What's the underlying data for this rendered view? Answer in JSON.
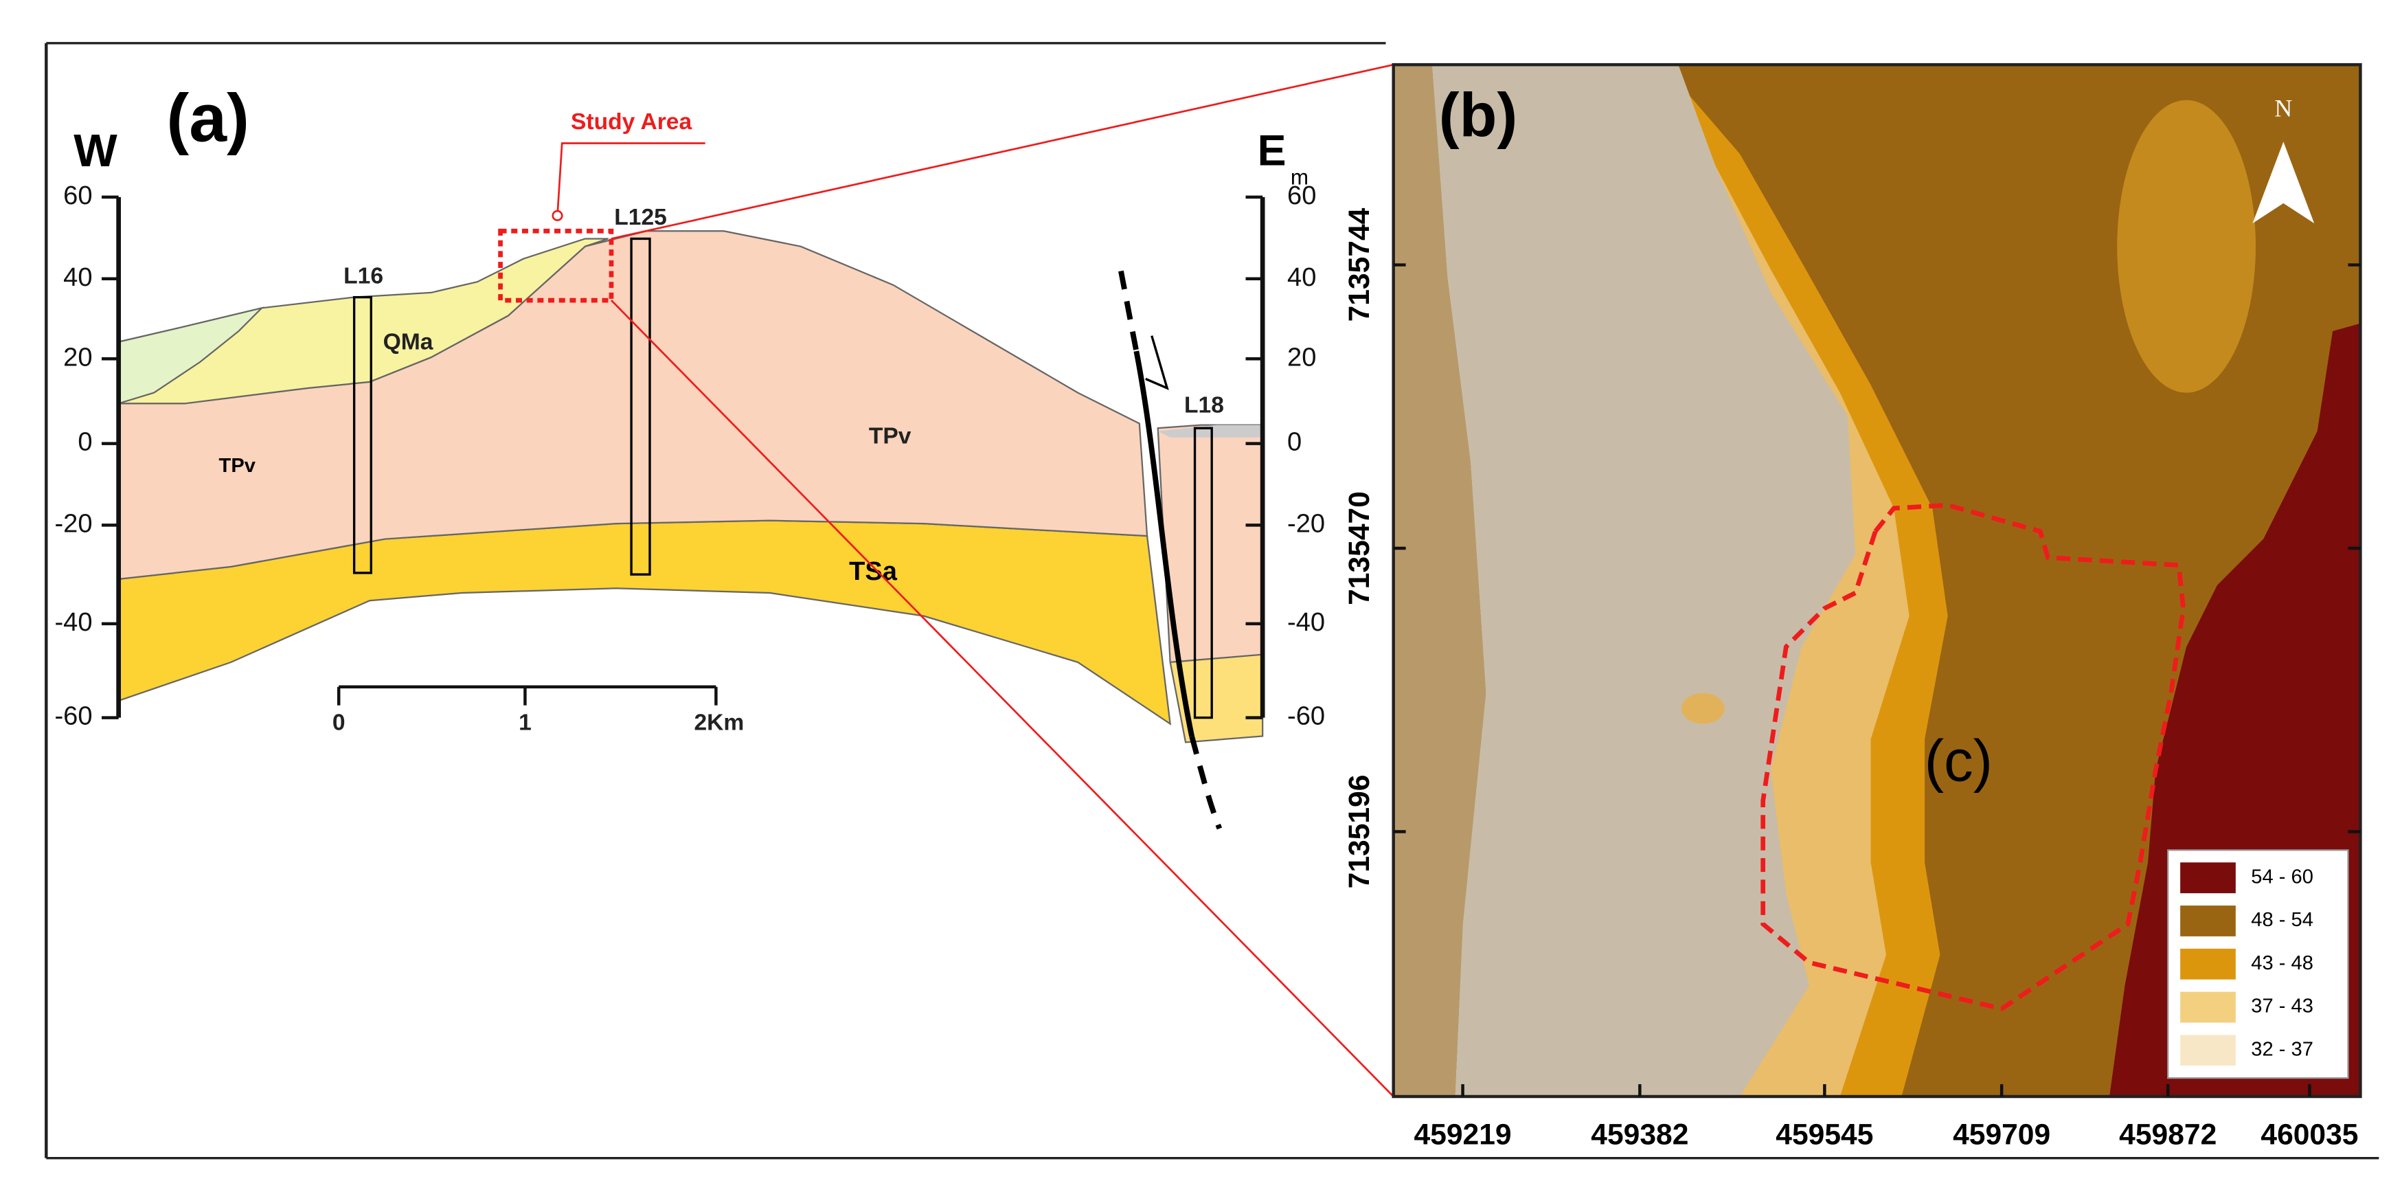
{
  "panel_a": {
    "label": "(a)",
    "west": "W",
    "east": "E",
    "unit": "m",
    "study_area": "Study Area",
    "left_ticks": [
      60,
      40,
      20,
      0,
      -20,
      -40,
      -60
    ],
    "right_ticks": [
      60,
      40,
      20,
      0,
      -20,
      -40,
      -60
    ],
    "wells": [
      "L16",
      "L125",
      "L18"
    ],
    "units": [
      "QMa",
      "TPv",
      "TPv",
      "TSa"
    ],
    "scale_bar": [
      "0",
      "1",
      "2Km"
    ]
  },
  "panel_b": {
    "label": "(b)",
    "inset_label": "(c)",
    "north": "N",
    "x_ticks": [
      459219,
      459382,
      459545,
      459709,
      459872,
      460035
    ],
    "y_ticks": [
      7135744,
      7135470,
      7135196
    ],
    "legend": [
      {
        "label": "54 - 60",
        "color": "#7a0c0c"
      },
      {
        "label": "48 - 54",
        "color": "#9a6512"
      },
      {
        "label": "43 - 48",
        "color": "#dc960e"
      },
      {
        "label": "37 - 43",
        "color": "#f3cf80"
      },
      {
        "label": "32 - 37",
        "color": "#f8e7c6"
      }
    ]
  }
}
